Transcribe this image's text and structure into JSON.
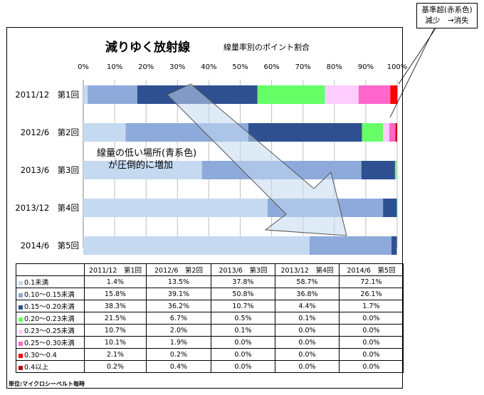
{
  "title": "減りゆく放射線",
  "subtitle": "線量率別のポイント割合",
  "callout": [
    "基準超(赤系色)",
    "減少　→消失"
  ],
  "annotation": [
    "線量の低い場所(青系色)",
    "が圧倒的に増加"
  ],
  "unit_note": "単位:マイクロシーベルト毎時",
  "colors": {
    "series": [
      "#c5d9f1",
      "#8eaadb",
      "#2e5090",
      "#66ff66",
      "#ffccff",
      "#ff66cc",
      "#ff0000",
      "#c00000"
    ]
  },
  "chart_data": {
    "type": "bar",
    "orientation": "horizontal",
    "stacked": true,
    "categories": [
      "2011/12　第1回",
      "2012/6　第2回",
      "2013/6　第3回",
      "2013/12　第4回",
      "2014/6　第5回"
    ],
    "xlim": [
      0,
      100
    ],
    "xticks": [
      "0%",
      "10%",
      "20%",
      "30%",
      "40%",
      "50%",
      "60%",
      "70%",
      "80%",
      "90%",
      "100%"
    ],
    "series": [
      {
        "name": "0.1未満",
        "values": [
          1.4,
          13.5,
          37.8,
          58.7,
          72.1
        ]
      },
      {
        "name": "0.10～0.15未満",
        "values": [
          15.8,
          39.1,
          50.8,
          36.8,
          26.1
        ]
      },
      {
        "name": "0.15～0.20未満",
        "values": [
          38.3,
          36.2,
          10.7,
          4.4,
          1.7
        ]
      },
      {
        "name": "0.20～0.23未満",
        "values": [
          21.5,
          6.7,
          0.5,
          0.1,
          0.0
        ]
      },
      {
        "name": "0.23～0.25未満",
        "values": [
          10.7,
          2.0,
          0.1,
          0.0,
          0.0
        ]
      },
      {
        "name": "0.25～0.30未満",
        "values": [
          10.1,
          1.9,
          0.0,
          0.0,
          0.0
        ]
      },
      {
        "name": "0.30～0.4",
        "values": [
          2.1,
          0.2,
          0.0,
          0.0,
          0.0
        ]
      },
      {
        "name": "0.4以上",
        "values": [
          0.2,
          0.4,
          0.0,
          0.0,
          0.0
        ]
      }
    ],
    "table": {
      "headers": [
        "2011/12　第1回",
        "2012/6　第2回",
        "2013/6　第3回",
        "2013/12　第4回",
        "2014/6　第5回"
      ],
      "rows": [
        [
          "1.4%",
          "13.5%",
          "37.8%",
          "58.7%",
          "72.1%"
        ],
        [
          "15.8%",
          "39.1%",
          "50.8%",
          "36.8%",
          "26.1%"
        ],
        [
          "38.3%",
          "36.2%",
          "10.7%",
          "4.4%",
          "1.7%"
        ],
        [
          "21.5%",
          "6.7%",
          "0.5%",
          "0.1%",
          "0.0%"
        ],
        [
          "10.7%",
          "2.0%",
          "0.1%",
          "0.0%",
          "0.0%"
        ],
        [
          "10.1%",
          "1.9%",
          "0.0%",
          "0.0%",
          "0.0%"
        ],
        [
          "2.1%",
          "0.2%",
          "0.0%",
          "0.0%",
          "0.0%"
        ],
        [
          "0.2%",
          "0.4%",
          "0.0%",
          "0.0%",
          "0.0%"
        ]
      ]
    }
  }
}
